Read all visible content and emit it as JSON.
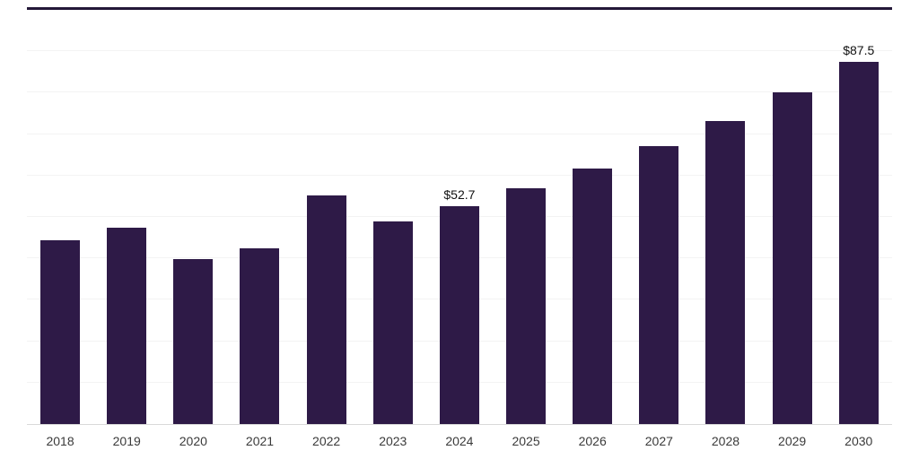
{
  "chart_data": {
    "type": "bar",
    "title": "",
    "categories": [
      "2018",
      "2019",
      "2020",
      "2021",
      "2022",
      "2023",
      "2024",
      "2025",
      "2026",
      "2027",
      "2028",
      "2029",
      "2030"
    ],
    "values": [
      44.3,
      47.3,
      39.9,
      42.4,
      55.2,
      49.0,
      52.7,
      56.9,
      61.6,
      67.2,
      73.1,
      80.0,
      87.5
    ],
    "bar_labels": [
      "",
      "",
      "",
      "",
      "",
      "",
      "$52.7",
      "",
      "",
      "",
      "",
      "",
      "$87.5"
    ],
    "xlabel": "",
    "ylabel": "",
    "ylim": [
      0,
      100
    ],
    "grid_step": 10,
    "grid": true,
    "legend": false,
    "bar_color": "#2e1a47"
  }
}
